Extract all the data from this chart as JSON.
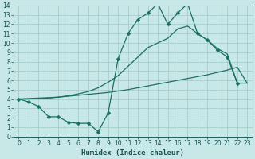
{
  "xlabel": "Humidex (Indice chaleur)",
  "bg_color": "#c8e8e8",
  "grid_color": "#b0d0d0",
  "line_color": "#1a7060",
  "xlim": [
    -0.5,
    23.5
  ],
  "ylim": [
    0,
    14
  ],
  "xticks": [
    0,
    1,
    2,
    3,
    4,
    5,
    6,
    7,
    8,
    9,
    10,
    11,
    12,
    13,
    14,
    15,
    16,
    17,
    18,
    19,
    20,
    21,
    22,
    23
  ],
  "yticks": [
    0,
    1,
    2,
    3,
    4,
    5,
    6,
    7,
    8,
    9,
    10,
    11,
    12,
    13,
    14
  ],
  "line1_x": [
    0,
    1,
    2,
    3,
    4,
    5,
    6,
    7,
    8,
    9,
    10,
    11,
    12,
    13,
    14,
    15,
    16,
    17,
    18,
    19,
    20,
    21,
    22
  ],
  "line1_y": [
    4.0,
    3.7,
    3.2,
    2.1,
    2.1,
    1.5,
    1.4,
    1.4,
    0.5,
    2.5,
    8.3,
    11.0,
    12.5,
    13.2,
    14.2,
    12.0,
    13.2,
    14.2,
    11.0,
    10.3,
    9.2,
    8.5,
    5.7
  ],
  "line2_x": [
    0,
    1,
    2,
    3,
    4,
    5,
    6,
    7,
    8,
    9,
    10,
    11,
    12,
    13,
    14,
    15,
    16,
    17,
    18,
    19,
    20,
    21,
    22,
    23
  ],
  "line2_y": [
    4.0,
    4.05,
    4.1,
    4.15,
    4.2,
    4.3,
    4.4,
    4.5,
    4.6,
    4.7,
    4.85,
    5.0,
    5.2,
    5.4,
    5.6,
    5.8,
    6.0,
    6.2,
    6.4,
    6.6,
    6.85,
    7.1,
    7.4,
    5.7
  ],
  "line3_x": [
    0,
    1,
    2,
    3,
    4,
    5,
    6,
    7,
    8,
    9,
    10,
    11,
    12,
    13,
    14,
    15,
    16,
    17,
    18,
    19,
    20,
    21,
    22,
    23
  ],
  "line3_y": [
    4.0,
    4.0,
    4.05,
    4.1,
    4.2,
    4.35,
    4.55,
    4.8,
    5.2,
    5.8,
    6.5,
    7.5,
    8.5,
    9.5,
    10.0,
    10.5,
    11.5,
    11.8,
    11.0,
    10.3,
    9.4,
    8.8,
    5.7,
    5.7
  ]
}
